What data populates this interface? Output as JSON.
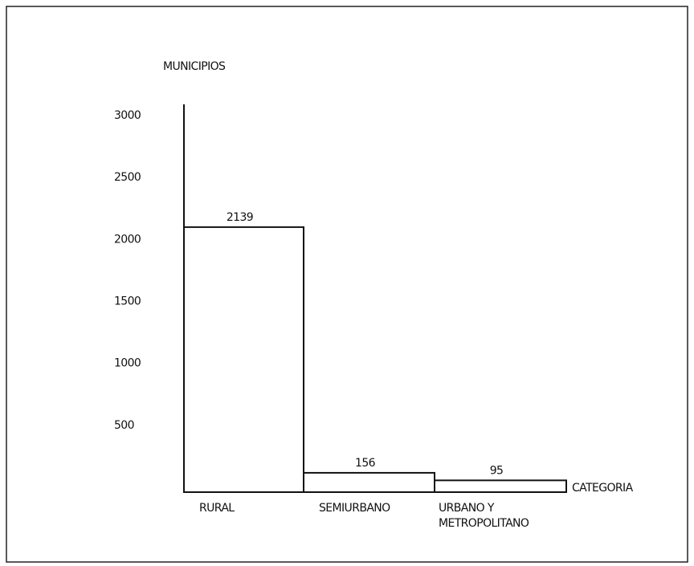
{
  "chart_data": {
    "type": "bar",
    "y_label": "MUNICIPIOS",
    "x_label": "CATEGORIA",
    "categories": [
      "RURAL",
      "SEMIURBANO",
      "URBANO Y METROPOLITANO"
    ],
    "values": [
      2139,
      156,
      95
    ],
    "color": "#111111",
    "ylim": [
      0,
      3000
    ],
    "yticks": [
      500,
      1000,
      1500,
      2000,
      2500,
      3000
    ],
    "grid": false
  }
}
